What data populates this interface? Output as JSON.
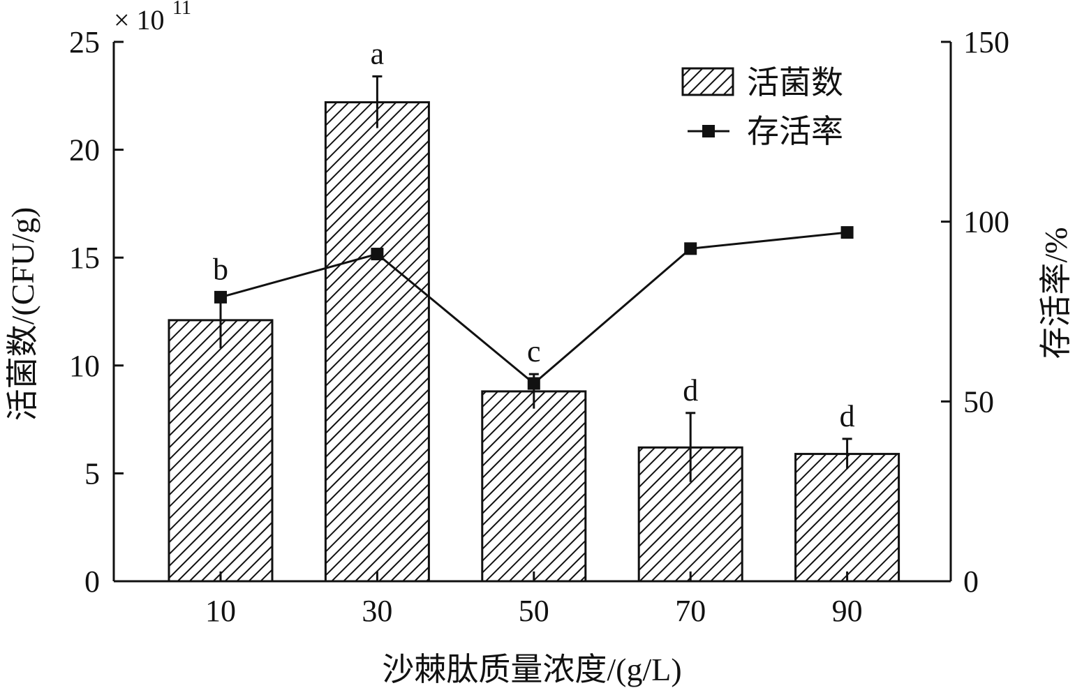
{
  "chart_data": {
    "type": "bar",
    "categories": [
      "10",
      "30",
      "50",
      "70",
      "90"
    ],
    "xlabel": "沙棘肽质量浓度/(g/L)",
    "ylabel": "活菌数/(CFU/g)",
    "y2label": "存活率/%",
    "ylim": [
      0,
      25
    ],
    "y2lim": [
      0,
      150
    ],
    "y_ticks": [
      "0",
      "5",
      "10",
      "15",
      "20",
      "25"
    ],
    "y2_ticks": [
      "0",
      "50",
      "100",
      "150"
    ],
    "y_multiplier": "× 10",
    "y_multiplier_exponent": "11",
    "legend_position": "top-right",
    "grid": false,
    "series": [
      {
        "name": "活菌数",
        "kind": "bar",
        "axis": "left",
        "pattern": "hatched",
        "values": [
          12.1,
          22.2,
          8.8,
          6.2,
          5.9
        ],
        "errors": [
          1.3,
          1.2,
          0.8,
          1.6,
          0.7
        ],
        "labels": [
          "b",
          "a",
          "c",
          "d",
          "d"
        ]
      },
      {
        "name": "存活率",
        "kind": "line",
        "axis": "right",
        "marker": "square",
        "values": [
          79,
          91,
          55,
          92.5,
          97
        ]
      }
    ]
  }
}
